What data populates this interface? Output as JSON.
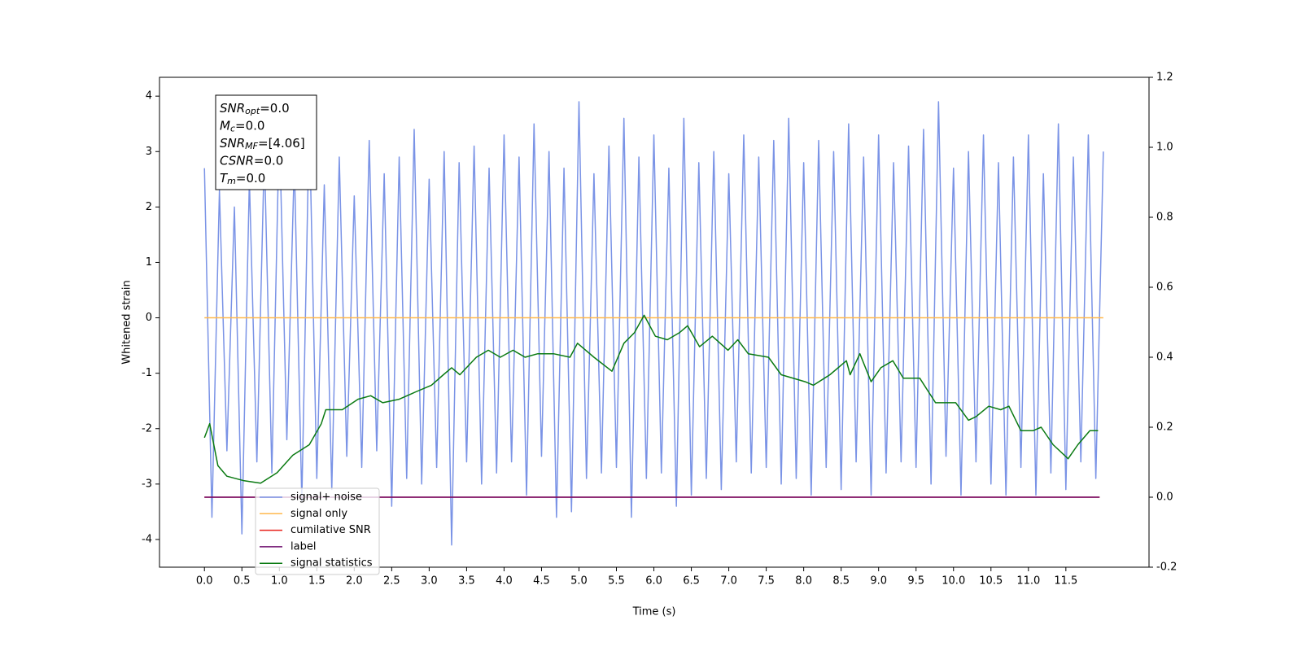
{
  "chart_data": {
    "type": "line",
    "xlabel": "Time (s)",
    "ylabel": "Whitened strain",
    "xlim": [
      -0.6,
      12.61
    ],
    "ylim": [
      -4.5,
      4.34
    ],
    "y2lim": [
      -0.2,
      1.2
    ],
    "xticks": [
      {
        "value": 0,
        "label": "0.0"
      },
      0.5,
      {
        "value": 1,
        "label": "1.0"
      },
      1.5,
      {
        "value": 2,
        "label": "2.0"
      },
      2.5,
      {
        "value": 3,
        "label": "3.0"
      },
      3.5,
      {
        "value": 4,
        "label": "4.0"
      },
      4.5,
      {
        "value": 5,
        "label": "5.0"
      },
      5.5,
      {
        "value": 6,
        "label": "6.0"
      },
      6.5,
      {
        "value": 7,
        "label": "7.0"
      },
      7.5,
      {
        "value": 8,
        "label": "8.0"
      },
      8.5,
      {
        "value": 9,
        "label": "9.0"
      },
      9.5,
      {
        "value": 10,
        "label": "10.0"
      },
      10.5,
      {
        "value": 11,
        "label": "11.0"
      },
      11.5
    ],
    "yticks": [
      -4,
      -3,
      -2,
      -1,
      0,
      1,
      2,
      3,
      4
    ],
    "y2ticks": [
      -0.2,
      {
        "value": 0,
        "label": "0.0"
      },
      0.2,
      0.4,
      0.6,
      0.8,
      {
        "value": 1,
        "label": "1.0"
      },
      1.2
    ],
    "legend": "lower left",
    "annotation": [
      {
        "symbol": "SNR",
        "subscript": "opt",
        "text": "=0.0"
      },
      {
        "symbol": "M",
        "subscript": "c",
        "text": "=0.0"
      },
      {
        "symbol": "SNR",
        "subscript": "MF",
        "text": "=[4.06]"
      },
      {
        "symbol": "CSNR",
        "subscript": "",
        "text": "=0.0"
      },
      {
        "symbol": "T",
        "subscript": "m",
        "text": "=0.0"
      }
    ],
    "series": [
      {
        "name": "signal+ noise",
        "color": "#7a93e6",
        "axis": "y",
        "x": [
          0,
          0.1,
          0.2,
          0.3,
          0.4,
          0.5,
          0.6,
          0.7,
          0.8,
          0.9,
          1,
          1.1,
          1.2,
          1.3,
          1.4,
          1.5,
          1.6,
          1.7,
          1.8,
          1.9,
          2,
          2.1,
          2.2,
          2.3,
          2.4,
          2.5,
          2.6,
          2.7,
          2.8,
          2.9,
          3,
          3.1,
          3.2,
          3.3,
          3.4,
          3.5,
          3.6,
          3.7,
          3.8,
          3.9,
          4,
          4.1,
          4.2,
          4.3,
          4.4,
          4.5,
          4.6,
          4.7,
          4.8,
          4.9,
          5,
          5.1,
          5.2,
          5.3,
          5.4,
          5.5,
          5.6,
          5.7,
          5.8,
          5.9,
          6,
          6.1,
          6.2,
          6.3,
          6.4,
          6.5,
          6.6,
          6.7,
          6.8,
          6.9,
          7,
          7.1,
          7.2,
          7.3,
          7.4,
          7.5,
          7.6,
          7.7,
          7.8,
          7.9,
          8,
          8.1,
          8.2,
          8.3,
          8.4,
          8.5,
          8.6,
          8.7,
          8.8,
          8.9,
          9,
          9.1,
          9.2,
          9.3,
          9.4,
          9.5,
          9.6,
          9.7,
          9.8,
          9.9,
          10,
          10.1,
          10.2,
          10.3,
          10.4,
          10.5,
          10.6,
          10.7,
          10.8,
          10.9,
          11,
          11.1,
          11.2,
          11.3,
          11.4,
          11.5,
          11.6,
          11.7,
          11.8,
          11.9,
          12
        ],
        "values": [
          2.7,
          -3.6,
          2.3,
          -2.4,
          2.0,
          -3.9,
          2.5,
          -2.6,
          3.0,
          -2.8,
          3.5,
          -2.2,
          2.8,
          -3.3,
          3.6,
          -2.9,
          2.4,
          -3.1,
          2.9,
          -2.5,
          2.2,
          -2.7,
          3.2,
          -2.4,
          2.6,
          -3.4,
          2.9,
          -2.9,
          3.4,
          -3.0,
          2.5,
          -2.7,
          3.0,
          -4.1,
          2.8,
          -2.6,
          3.1,
          -3.0,
          2.7,
          -2.8,
          3.3,
          -2.6,
          2.9,
          -3.2,
          3.5,
          -2.5,
          3.0,
          -3.6,
          2.7,
          -3.5,
          3.9,
          -2.9,
          2.6,
          -2.8,
          3.1,
          -2.7,
          3.6,
          -3.6,
          2.9,
          -2.9,
          3.3,
          -2.8,
          2.7,
          -3.4,
          3.6,
          -3.2,
          2.8,
          -2.9,
          3.0,
          -3.1,
          2.6,
          -2.6,
          3.3,
          -2.8,
          2.9,
          -2.7,
          3.2,
          -3.0,
          3.6,
          -2.9,
          2.8,
          -3.2,
          3.2,
          -2.7,
          3.0,
          -3.1,
          3.5,
          -2.6,
          2.9,
          -3.2,
          3.3,
          -2.8,
          2.8,
          -2.6,
          3.1,
          -2.7,
          3.4,
          -3.0,
          3.9,
          -2.5,
          2.7,
          -3.2,
          3.0,
          -2.6,
          3.3,
          -3.0,
          2.8,
          -3.2,
          2.9,
          -2.7,
          3.3,
          -3.2,
          2.6,
          -2.8,
          3.5,
          -3.1,
          2.9,
          -2.6,
          3.3,
          -2.9,
          3.0
        ]
      },
      {
        "name": "signal only",
        "color": "#ffb84d",
        "axis": "y",
        "x": [
          0,
          12
        ],
        "values": [
          0,
          0
        ]
      },
      {
        "name": "cumilative SNR",
        "color": "#e8211a",
        "axis": "y2",
        "x": [
          0,
          11.95
        ],
        "values": [
          0,
          0
        ]
      },
      {
        "name": "label",
        "color": "#6e0e6e",
        "axis": "y2",
        "x": [
          0,
          11.95
        ],
        "values": [
          0,
          0
        ]
      },
      {
        "name": "signal statistics",
        "color": "#0a7a12",
        "axis": "y2",
        "x": [
          0,
          0.07,
          0.18,
          0.3,
          0.53,
          0.75,
          0.97,
          1.18,
          1.4,
          1.56,
          1.62,
          1.84,
          2.05,
          2.22,
          2.38,
          2.6,
          2.81,
          3.03,
          3.19,
          3.3,
          3.41,
          3.63,
          3.79,
          3.95,
          4.12,
          4.28,
          4.45,
          4.66,
          4.88,
          4.98,
          5.2,
          5.44,
          5.6,
          5.74,
          5.87,
          6.02,
          6.18,
          6.34,
          6.45,
          6.61,
          6.78,
          6.99,
          7.12,
          7.26,
          7.53,
          7.7,
          8.02,
          8.13,
          8.35,
          8.57,
          8.62,
          8.75,
          8.9,
          9.03,
          9.19,
          9.33,
          9.55,
          9.76,
          10.03,
          10.2,
          10.3,
          10.47,
          10.63,
          10.74,
          10.9,
          11.06,
          11.17,
          11.33,
          11.53,
          11.66,
          11.82,
          11.93
        ],
        "values": [
          0.17,
          0.21,
          0.09,
          0.06,
          0.047,
          0.04,
          0.07,
          0.12,
          0.15,
          0.21,
          0.25,
          0.25,
          0.28,
          0.29,
          0.27,
          0.28,
          0.3,
          0.32,
          0.35,
          0.37,
          0.35,
          0.4,
          0.42,
          0.4,
          0.42,
          0.4,
          0.41,
          0.41,
          0.4,
          0.44,
          0.4,
          0.36,
          0.44,
          0.47,
          0.52,
          0.46,
          0.45,
          0.47,
          0.49,
          0.43,
          0.46,
          0.42,
          0.45,
          0.41,
          0.4,
          0.35,
          0.33,
          0.32,
          0.35,
          0.39,
          0.35,
          0.41,
          0.33,
          0.37,
          0.39,
          0.34,
          0.34,
          0.27,
          0.27,
          0.22,
          0.23,
          0.26,
          0.25,
          0.26,
          0.19,
          0.19,
          0.2,
          0.15,
          0.11,
          0.15,
          0.19,
          0.19
        ]
      }
    ]
  }
}
